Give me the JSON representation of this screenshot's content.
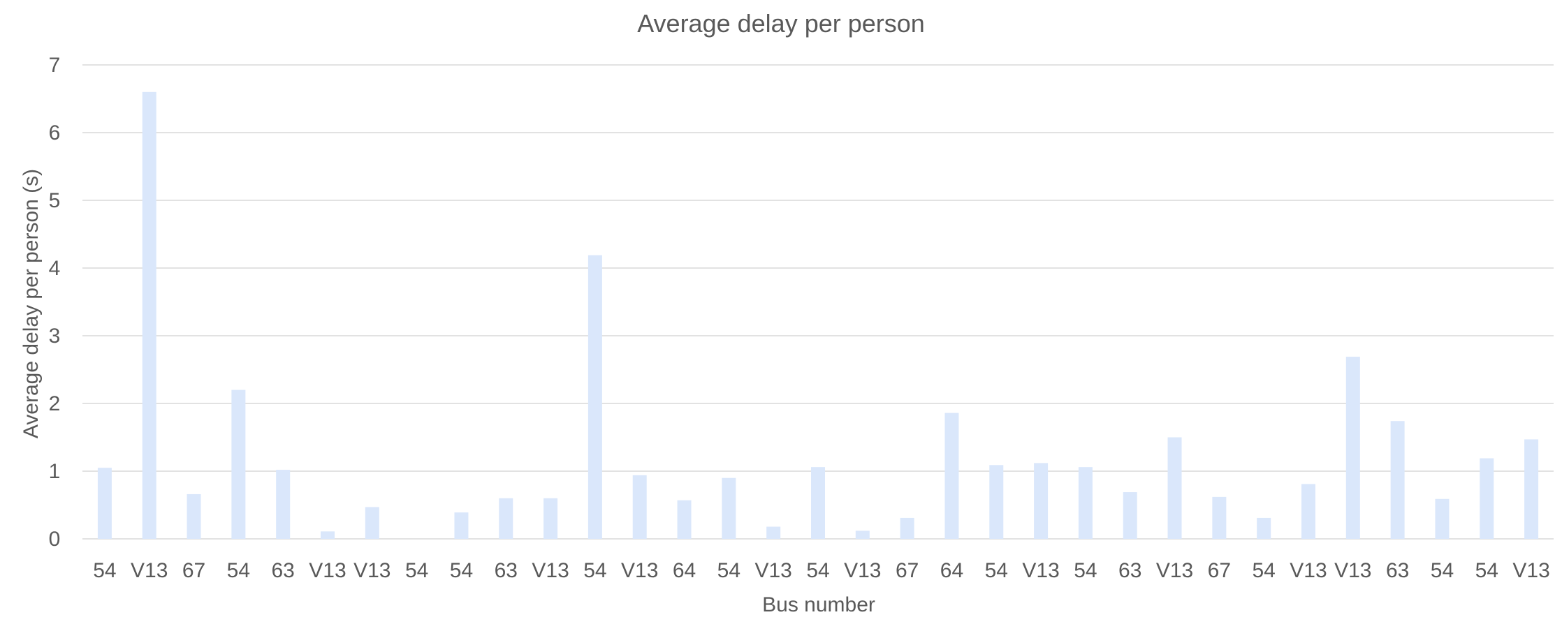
{
  "chart_data": {
    "type": "bar",
    "title": "Average delay per person",
    "xlabel": "Bus number",
    "ylabel": "Average delay per person (s)",
    "ylim": [
      0,
      7
    ],
    "yticks": [
      0,
      1,
      2,
      3,
      4,
      5,
      6,
      7
    ],
    "grid": true,
    "legend": "none",
    "bar_color": "#dae7fb",
    "categories": [
      "54",
      "V13",
      "67",
      "54",
      "63",
      "V13",
      "V13",
      "54",
      "54",
      "63",
      "V13",
      "54",
      "V13",
      "64",
      "54",
      "V13",
      "54",
      "V13",
      "67",
      "64",
      "54",
      "V13",
      "54",
      "63",
      "V13",
      "67",
      "54",
      "V13",
      "V13",
      "63",
      "54",
      "54",
      "V13"
    ],
    "values": [
      1.05,
      6.6,
      0.66,
      2.2,
      1.02,
      0.11,
      0.47,
      0.0,
      0.39,
      0.6,
      0.6,
      4.19,
      0.94,
      0.57,
      0.9,
      0.18,
      1.06,
      0.12,
      0.31,
      1.86,
      1.09,
      1.12,
      1.06,
      0.69,
      1.5,
      0.62,
      0.31,
      0.81,
      2.69,
      1.74,
      0.59,
      1.19,
      1.47
    ]
  }
}
